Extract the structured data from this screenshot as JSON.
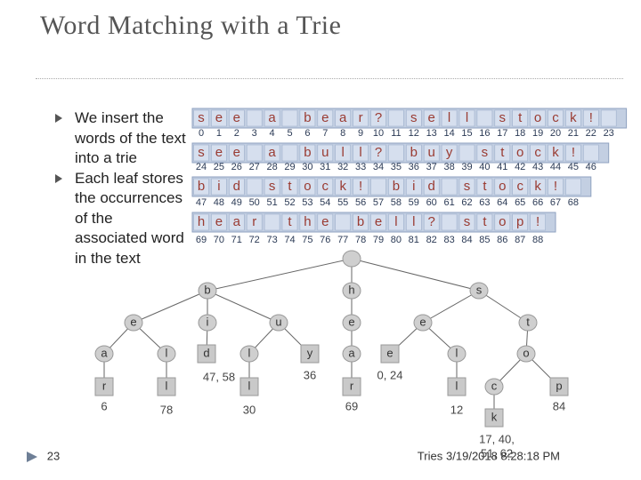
{
  "header": {
    "title": "Word Matching with a Trie"
  },
  "bullets": [
    "We insert the words of the text into a trie",
    "Each leaf stores the occurrences of the associated word in the text"
  ],
  "text_rows": [
    {
      "chars": [
        "s",
        "e",
        "e",
        null,
        "a",
        null,
        "b",
        "e",
        "a",
        "r",
        "?",
        null,
        "s",
        "e",
        "l",
        "l",
        null,
        "s",
        "t",
        "o",
        "c",
        "k",
        "!",
        null
      ],
      "indices": [
        0,
        1,
        2,
        3,
        4,
        5,
        6,
        7,
        8,
        9,
        10,
        11,
        12,
        13,
        14,
        15,
        16,
        17,
        18,
        19,
        20,
        21,
        22,
        23
      ]
    },
    {
      "chars": [
        "s",
        "e",
        "e",
        null,
        "a",
        null,
        "b",
        "u",
        "l",
        "l",
        "?",
        null,
        "b",
        "u",
        "y",
        null,
        "s",
        "t",
        "o",
        "c",
        "k",
        "!",
        null
      ],
      "indices": [
        24,
        25,
        26,
        27,
        28,
        29,
        30,
        31,
        32,
        33,
        34,
        35,
        36,
        37,
        38,
        39,
        40,
        41,
        42,
        43,
        44,
        45,
        46
      ]
    },
    {
      "chars": [
        "b",
        "i",
        "d",
        null,
        "s",
        "t",
        "o",
        "c",
        "k",
        "!",
        null,
        "b",
        "i",
        "d",
        null,
        "s",
        "t",
        "o",
        "c",
        "k",
        "!",
        null
      ],
      "indices": [
        47,
        48,
        49,
        50,
        51,
        52,
        53,
        54,
        55,
        56,
        57,
        58,
        59,
        60,
        61,
        62,
        63,
        64,
        65,
        66,
        67,
        68
      ]
    },
    {
      "chars": [
        "h",
        "e",
        "a",
        "r",
        null,
        "t",
        "h",
        "e",
        null,
        "b",
        "e",
        "l",
        "l",
        "?",
        null,
        "s",
        "t",
        "o",
        "p",
        "!"
      ],
      "indices": [
        69,
        70,
        71,
        72,
        73,
        74,
        75,
        76,
        77,
        78,
        79,
        80,
        81,
        82,
        83,
        84,
        85,
        86,
        87,
        88
      ]
    }
  ],
  "nodes": [
    {
      "label": null
    },
    {
      "label": "b"
    },
    {
      "label": "h"
    },
    {
      "label": "s"
    },
    {
      "label": "e"
    },
    {
      "label": "i"
    },
    {
      "label": "u"
    },
    {
      "label": "e"
    },
    {
      "label": "e"
    },
    {
      "label": "t"
    },
    {
      "label": "a"
    },
    {
      "label": "l"
    },
    {
      "label": "d",
      "occurrences": [
        "47, 58"
      ]
    },
    {
      "label": "l"
    },
    {
      "label": "y",
      "occurrences": [
        "36"
      ]
    },
    {
      "label": "a"
    },
    {
      "label": "e",
      "occurrences": [
        "0, 24"
      ]
    },
    {
      "label": "l"
    },
    {
      "label": "o"
    },
    {
      "label": "r",
      "occurrences": [
        "6"
      ]
    },
    {
      "label": "l",
      "occurrences": [
        "78"
      ]
    },
    {
      "label": "l",
      "occurrences": [
        "30"
      ]
    },
    {
      "label": "r",
      "occurrences": [
        "69"
      ]
    },
    {
      "label": "l",
      "occurrences": [
        "12"
      ]
    },
    {
      "label": "c"
    },
    {
      "label": "p",
      "occurrences": [
        "84"
      ]
    },
    {
      "label": "k",
      "occurrences": [
        "17, 40,",
        "51, 62"
      ]
    }
  ],
  "footer": {
    "page": "23",
    "section": "Tries",
    "date": "3/19/2018 8:28:18 PM"
  }
}
